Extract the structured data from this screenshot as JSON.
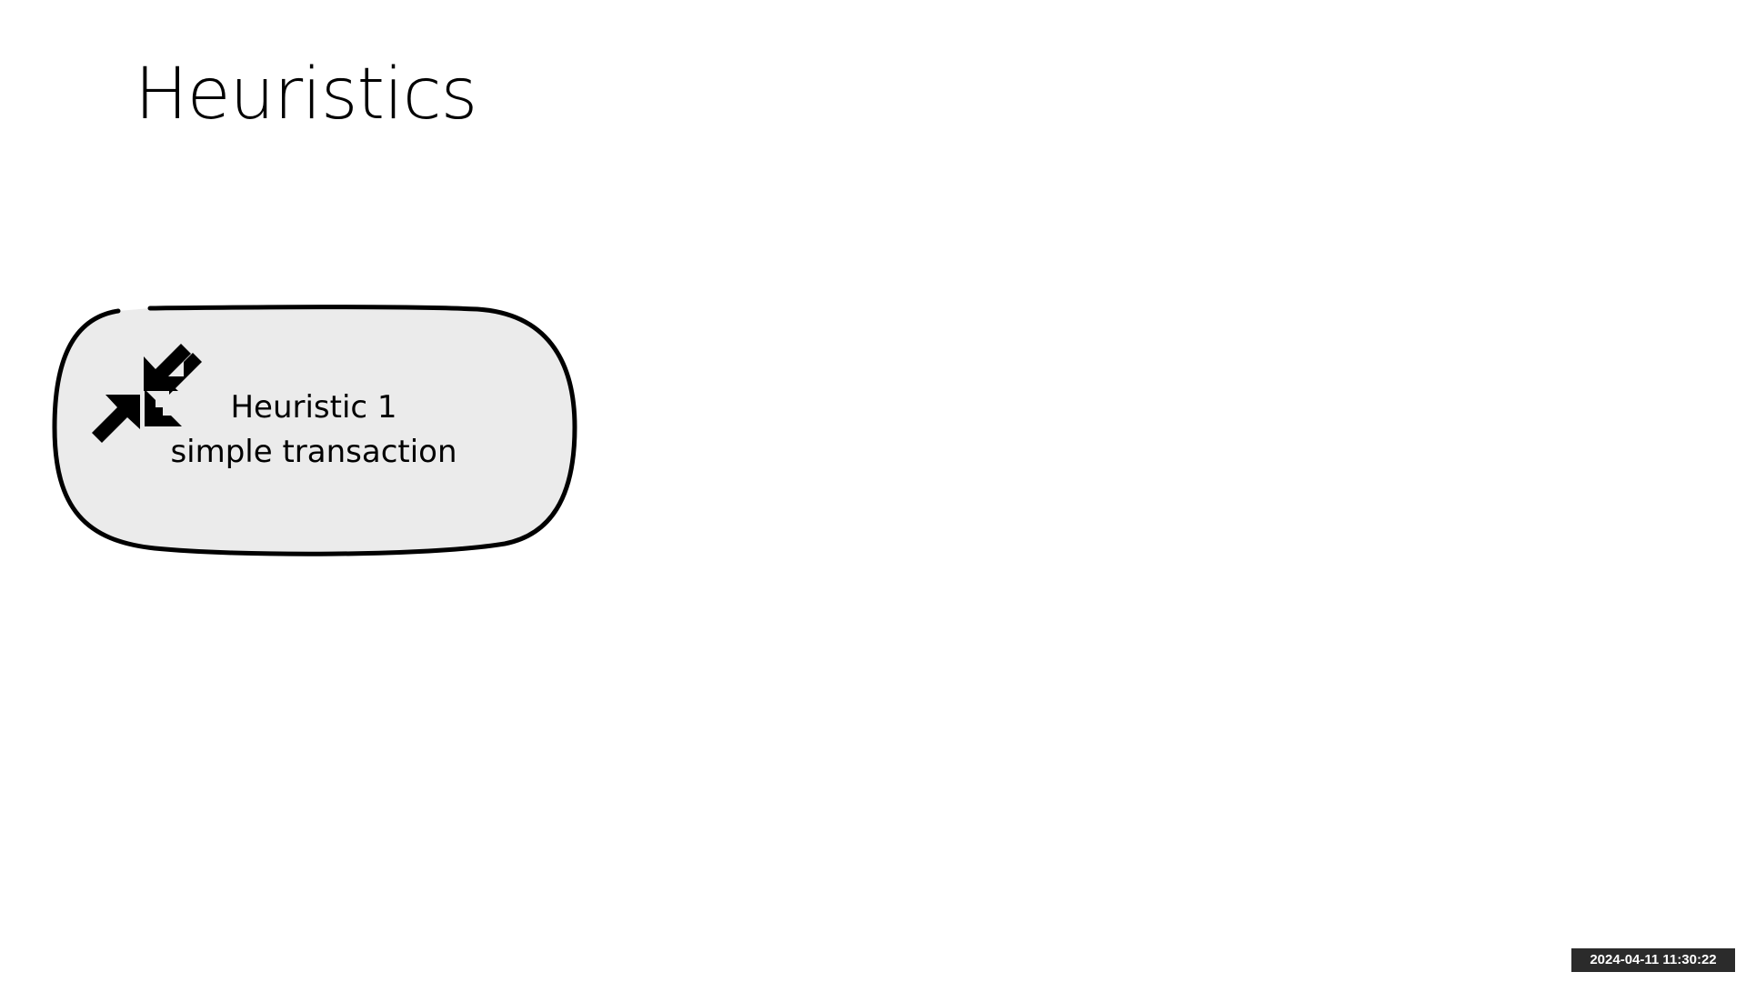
{
  "slide": {
    "title": "Heuristics"
  },
  "card": {
    "icon": "collapse-arrows-icon",
    "line1": "Heuristic 1",
    "line2": "simple transaction",
    "fill_color": "#ebebeb",
    "border_color": "#000000"
  },
  "overlay": {
    "timestamp": "2024-04-11 11:30:22"
  }
}
